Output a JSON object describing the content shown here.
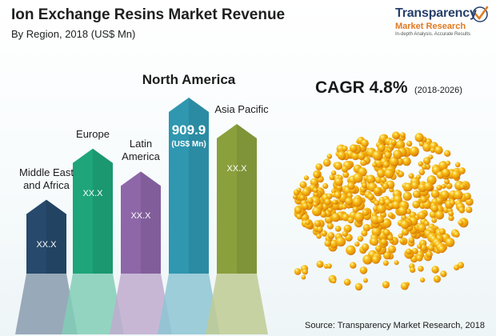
{
  "title": "Ion Exchange Resins Market Revenue",
  "subtitle": "By Region, 2018 (US$ Mn)",
  "logo": {
    "line1": "Transparency",
    "line2": "Market Research",
    "tagline": "In-depth Analysis. Accurate Results"
  },
  "cagr": {
    "label": "CAGR 4.8%",
    "period": "(2018-2026)"
  },
  "source": "Source: Transparency Market Research, 2018",
  "colors": {
    "middle_east_africa": "#27496b",
    "europe": "#1ea57a",
    "latin_america": "#8d67a8",
    "north_america": "#2f97b0",
    "asia_pacific": "#8aa03d"
  },
  "chart_data": {
    "type": "bar",
    "title": "Ion Exchange Resins Market Revenue",
    "subtitle": "By Region, 2018 (US$ Mn)",
    "categories": [
      "Middle East and Africa",
      "Europe",
      "Latin America",
      "North America",
      "Asia Pacific"
    ],
    "category_labels": [
      "Middle East\nand Africa",
      "Europe",
      "Latin\nAmerica",
      "North America",
      "Asia Pacific"
    ],
    "value_labels": [
      "XX.X",
      "XX.X",
      "XX.X",
      "909.9",
      "XX.X"
    ],
    "value_unit": "(US$ Mn)",
    "highlight_index": 3,
    "series": [
      {
        "values": [
          null,
          null,
          null,
          909.9,
          null
        ]
      }
    ],
    "display_heights_relative": [
      0.42,
      0.71,
      0.58,
      1.0,
      0.85
    ],
    "bar_colors": [
      "#27496b",
      "#1ea57a",
      "#8d67a8",
      "#2f97b0",
      "#8aa03d"
    ],
    "grid": false,
    "legend": "none"
  }
}
